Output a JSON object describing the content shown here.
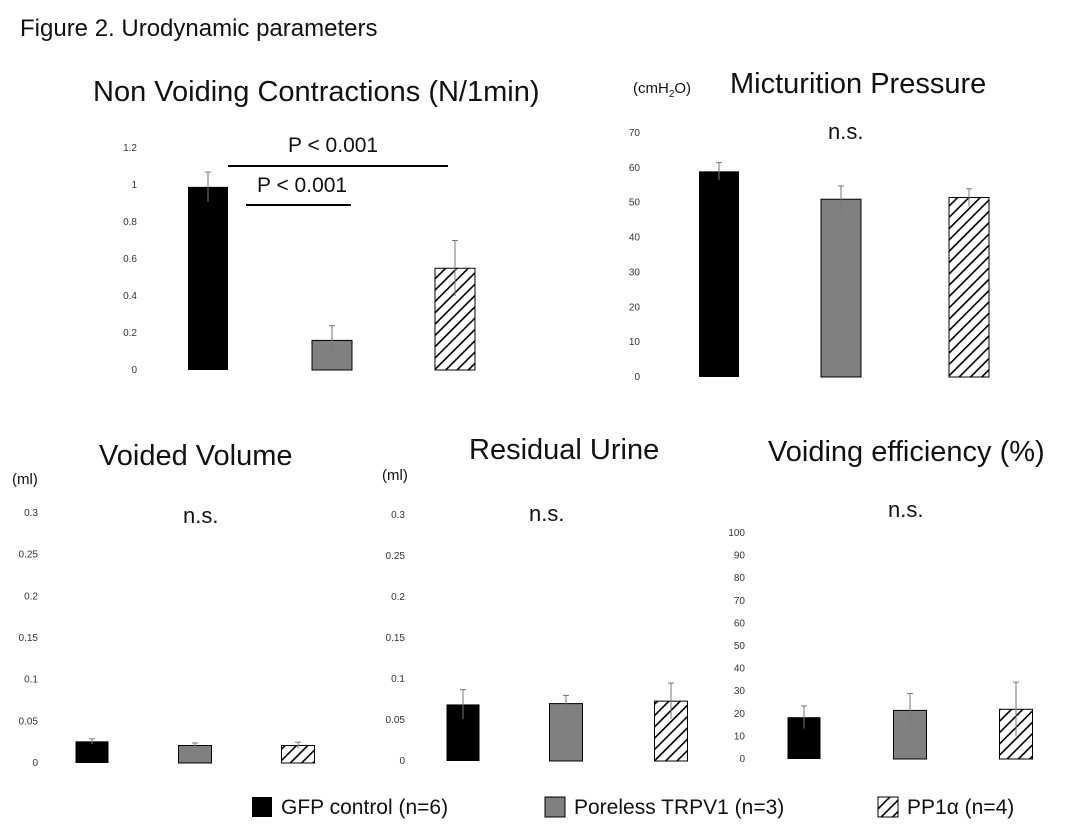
{
  "figure_title": "Figure 2. Urodynamic parameters",
  "colors": {
    "gfp": "#000000",
    "poreless": "#808080",
    "pp1a": "hatched"
  },
  "legend": [
    {
      "label": "GFP control (n=6)",
      "style": "black"
    },
    {
      "label": "Poreless TRPV1 (n=3)",
      "style": "gray"
    },
    {
      "label": "PP1α (n=4)",
      "style": "hatch"
    }
  ],
  "chart_data": [
    {
      "type": "bar",
      "title": "Non Voiding Contractions (N/1min)",
      "unit": "",
      "categories": [
        "GFP control",
        "Poreless TRPV1",
        "PP1α"
      ],
      "values": [
        0.99,
        0.16,
        0.55
      ],
      "errors": [
        0.08,
        0.08,
        0.15
      ],
      "ylim": [
        0,
        1.2
      ],
      "yticks": [
        "0",
        "0.2",
        "0.4",
        "0.6",
        "0.8",
        "1",
        "1.2"
      ],
      "annotations": [
        "P < 0.001",
        "P < 0.001"
      ],
      "grid": false
    },
    {
      "type": "bar",
      "title": "Micturition Pressure",
      "unit": "cmH2O",
      "categories": [
        "GFP control",
        "Poreless TRPV1",
        "PP1α"
      ],
      "values": [
        59,
        51,
        51.5
      ],
      "errors": [
        2.5,
        3.8,
        2.5
      ],
      "ylim": [
        0,
        70
      ],
      "yticks": [
        "0",
        "10",
        "20",
        "30",
        "40",
        "50",
        "60",
        "70"
      ],
      "annotations": [
        "n.s."
      ],
      "grid": false
    },
    {
      "type": "bar",
      "title": "Voided Volume",
      "unit": "(ml)",
      "categories": [
        "GFP control",
        "Poreless TRPV1",
        "PP1α"
      ],
      "values": [
        0.026,
        0.021,
        0.021
      ],
      "errors": [
        0.003,
        0.003,
        0.004
      ],
      "ylim": [
        0,
        0.3
      ],
      "yticks": [
        "0",
        "0.05",
        "0.1",
        "0.15",
        "0.2",
        "0.25",
        "0.3"
      ],
      "annotations": [
        "n.s."
      ],
      "grid": false
    },
    {
      "type": "bar",
      "title": "Residual Urine",
      "unit": "(ml)",
      "categories": [
        "GFP control",
        "Poreless TRPV1",
        "PP1α"
      ],
      "values": [
        0.069,
        0.07,
        0.073
      ],
      "errors": [
        0.018,
        0.01,
        0.022
      ],
      "ylim": [
        0,
        0.3
      ],
      "yticks": [
        "0",
        "0.05",
        "0.1",
        "0.15",
        "0.2",
        "0.25",
        "0.3"
      ],
      "annotations": [
        "n.s."
      ],
      "grid": false
    },
    {
      "type": "bar",
      "title": "Voiding efficiency (%)",
      "unit": "",
      "categories": [
        "GFP control",
        "Poreless TRPV1",
        "PP1α"
      ],
      "values": [
        18.5,
        21.5,
        22
      ],
      "errors": [
        5,
        7.5,
        12
      ],
      "ylim": [
        0,
        100
      ],
      "yticks": [
        "0",
        "10",
        "20",
        "30",
        "40",
        "50",
        "60",
        "70",
        "80",
        "90",
        "100"
      ],
      "annotations": [
        "n.s."
      ],
      "grid": false
    }
  ]
}
